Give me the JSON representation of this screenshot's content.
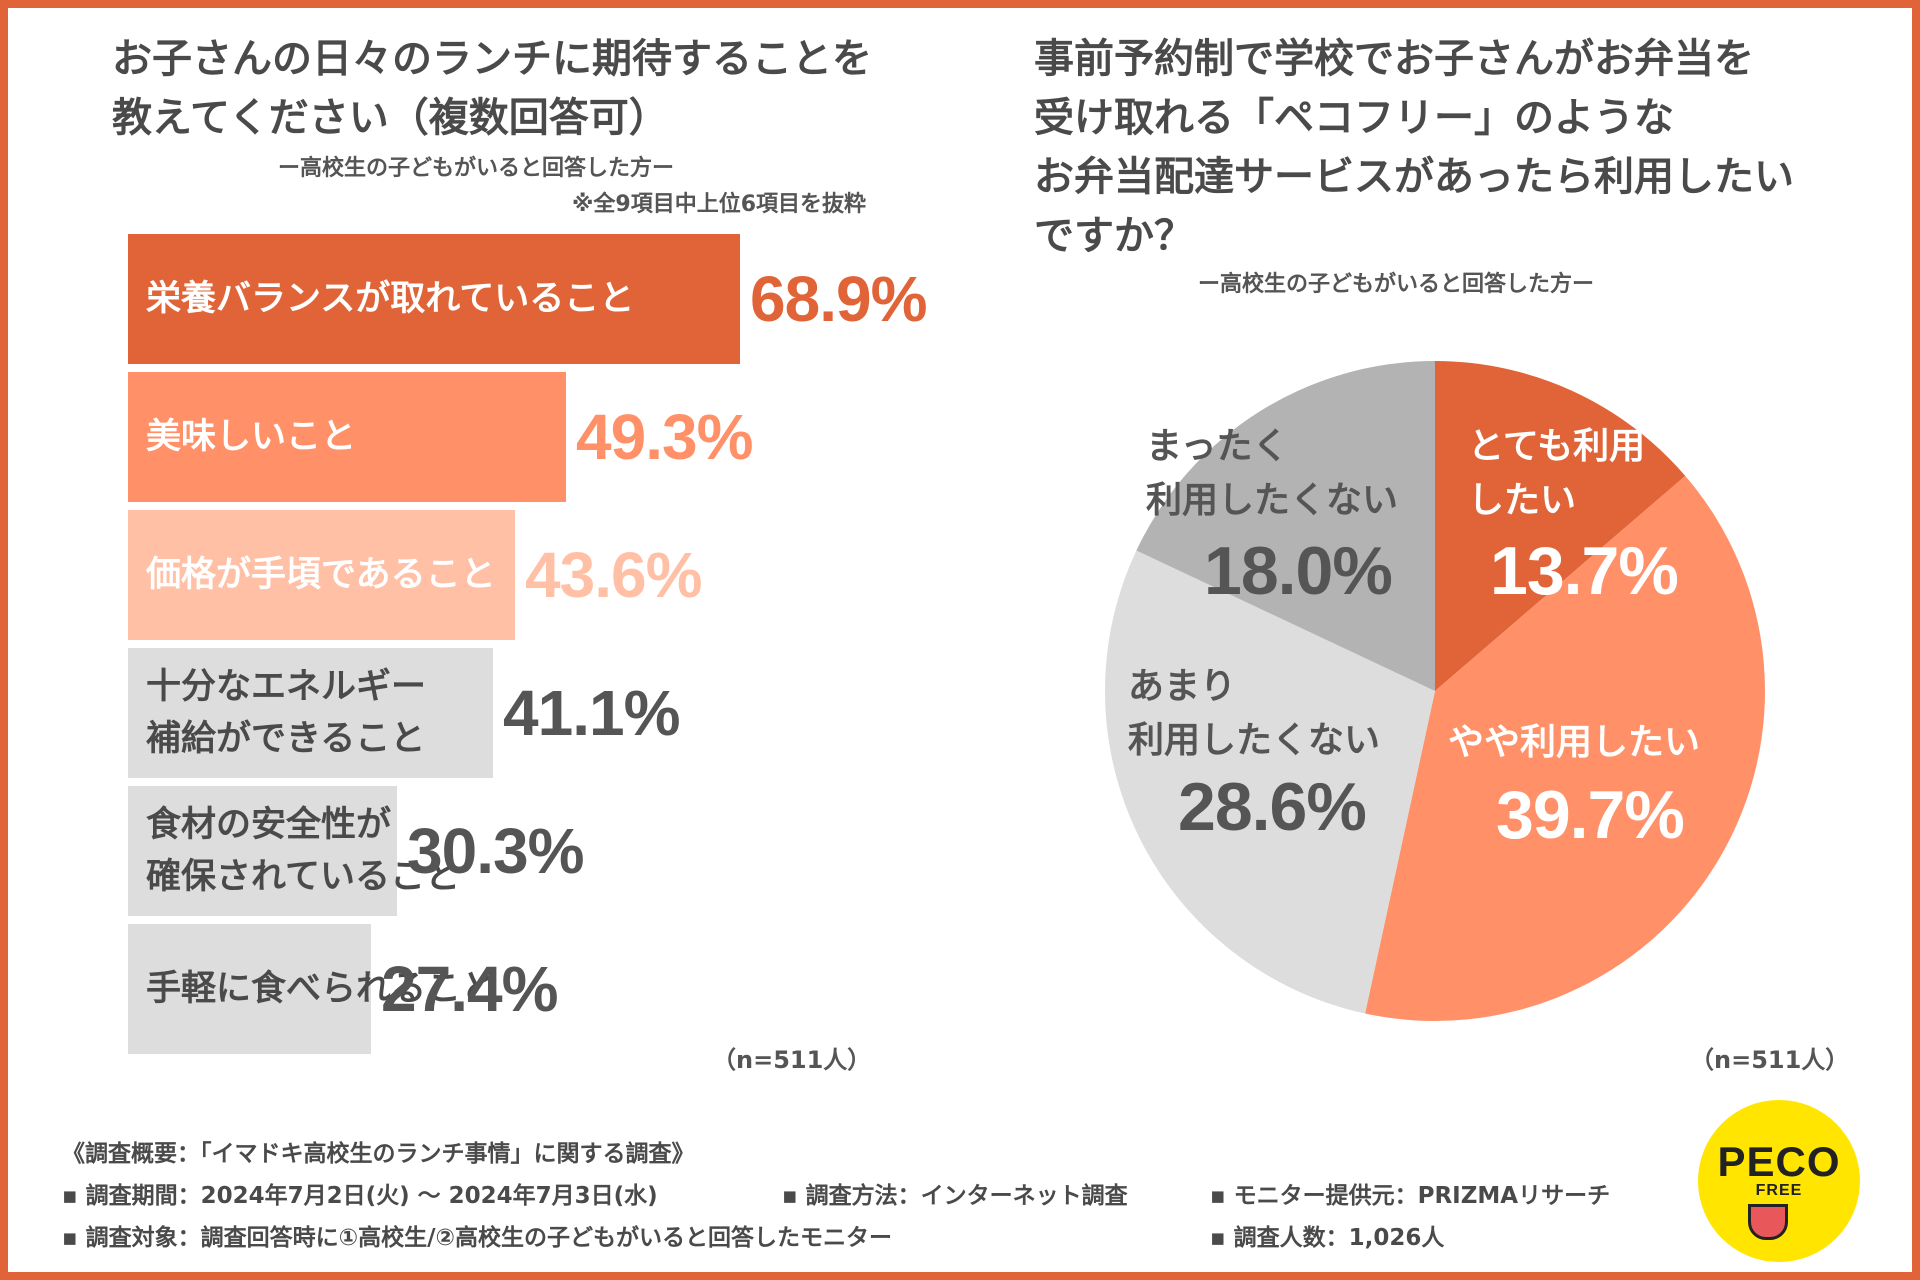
{
  "left": {
    "title_line1": "お子さんの日々のランチに期待することを",
    "title_line2": "教えてください（複数回答可）",
    "subtitle": "ー高校生の子どもがいると回答した方ー",
    "note": "※全9項目中上位6項目を抜粋",
    "n": "（n=511人）"
  },
  "right": {
    "title_line1": "事前予約制で学校でお子さんがお弁当を",
    "title_line2": "受け取れる「ペコフリー」のような",
    "title_line3": "お弁当配達サービスがあったら利用したい",
    "title_line4": "ですか？",
    "subtitle": "ー高校生の子どもがいると回答した方ー",
    "n": "（n=511人）"
  },
  "chart_data": [
    {
      "type": "bar",
      "orientation": "horizontal",
      "title": "お子さんの日々のランチに期待することを教えてください（複数回答可）",
      "categories": [
        "栄養バランスが取れていること",
        "美味しいこと",
        "価格が手頃であること",
        "十分なエネルギー補給ができること",
        "食材の安全性が確保されていること",
        "手軽に食べられること"
      ],
      "label_lines": [
        "栄養バランスが取れていること",
        "美味しいこと",
        "価格が手頃であること",
        "十分なエネルギー\n補給ができること",
        "食材の安全性が\n確保されていること",
        "手軽に食べられること"
      ],
      "values": [
        68.9,
        49.3,
        43.6,
        41.1,
        30.3,
        27.4
      ],
      "value_labels": [
        "68.9%",
        "49.3%",
        "43.6%",
        "41.1%",
        "30.3%",
        "27.4%"
      ],
      "bar_colors": [
        "#e06437",
        "#ff9068",
        "#ffc0a6",
        "#dddddd",
        "#dddddd",
        "#dddddd"
      ],
      "label_colors": [
        "#ffffff",
        "#ffffff",
        "#ffffff",
        "#4a4a4a",
        "#4a4a4a",
        "#4a4a4a"
      ],
      "value_colors": [
        "#e06437",
        "#ff9068",
        "#ffc0a6",
        "#555555",
        "#555555",
        "#555555"
      ],
      "xlim": [
        0,
        100
      ]
    },
    {
      "type": "pie",
      "title": "事前予約制で学校でお子さんがお弁当を受け取れる「ペコフリー」のようなお弁当配達サービスがあったら利用したいですか？",
      "labels": [
        "とても利用したい",
        "やや利用したい",
        "あまり利用したくない",
        "まったく利用したくない"
      ],
      "label_lines": [
        "とても利用\nしたい",
        "やや利用したい",
        "あまり\n利用したくない",
        "まったく\n利用したくない"
      ],
      "values": [
        13.7,
        39.7,
        28.6,
        18.0
      ],
      "value_labels": [
        "13.7%",
        "39.7%",
        "28.6%",
        "18.0%"
      ],
      "colors": [
        "#e06437",
        "#ff9068",
        "#dddddd",
        "#b3b3b3"
      ],
      "text_colors": [
        "#ffffff",
        "#ffffff",
        "#555555",
        "#555555"
      ]
    }
  ],
  "footer": {
    "heading": "《調査概要：「イマドキ高校生のランチ事情」に関する調査》",
    "period": "▪ 調査期間：2024年7月2日(火) ～ 2024年7月3日(水)",
    "method": "▪ 調査方法：インターネット調査",
    "provider": "▪ モニター提供元：PRIZMAリサーチ",
    "target": "▪ 調査対象：調査回答時に①高校生/②高校生の子どもがいると回答したモニター",
    "count": "▪ 調査人数：1,026人"
  },
  "logo": {
    "top": "PECO",
    "bottom": "FREE"
  }
}
